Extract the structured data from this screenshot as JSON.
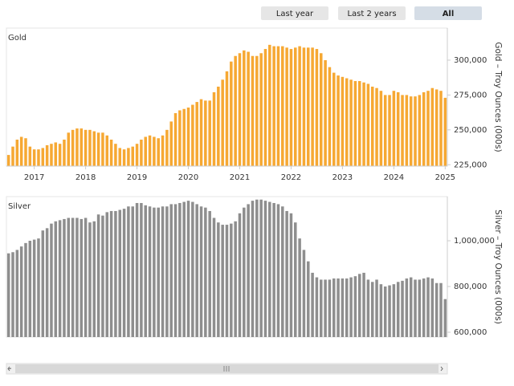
{
  "buttons": [
    "Last year",
    "Last 2 years",
    "All"
  ],
  "chart_data": [
    {
      "type": "bar",
      "title": "Gold",
      "y_label": "Gold – Troy Ounces (000s)",
      "color": "#f6a833",
      "categories": [
        null,
        null,
        null,
        null,
        null,
        null,
        "2017",
        null,
        null,
        null,
        null,
        null,
        null,
        null,
        null,
        null,
        null,
        null,
        "2018",
        null,
        null,
        null,
        null,
        null,
        null,
        null,
        null,
        null,
        null,
        null,
        "2019",
        null,
        null,
        null,
        null,
        null,
        null,
        null,
        null,
        null,
        null,
        null,
        "2020",
        null,
        null,
        null,
        null,
        null,
        null,
        null,
        null,
        null,
        null,
        null,
        "2021",
        null,
        null,
        null,
        null,
        null,
        null,
        null,
        null,
        null,
        null,
        null,
        "2022",
        null,
        null,
        null,
        null,
        null,
        null,
        null,
        null,
        null,
        null,
        null,
        "2023",
        null,
        null,
        null,
        null,
        null,
        null,
        null,
        null,
        null,
        null,
        null,
        "2024",
        null,
        null,
        null,
        null,
        null,
        null,
        null,
        null,
        null,
        null,
        null,
        "2025"
      ],
      "values": [
        232000,
        238000,
        243000,
        245000,
        244000,
        238000,
        236000,
        236000,
        237000,
        239000,
        240000,
        241000,
        240000,
        243000,
        248000,
        250000,
        251000,
        251000,
        250000,
        250000,
        249000,
        248000,
        248000,
        246000,
        243000,
        240000,
        237000,
        236000,
        237000,
        238000,
        240000,
        243000,
        245000,
        246000,
        245000,
        244000,
        246000,
        250000,
        256000,
        262000,
        264000,
        265000,
        266000,
        268000,
        270000,
        272000,
        271000,
        271000,
        277000,
        281000,
        286000,
        292000,
        299000,
        303000,
        305000,
        307000,
        306000,
        303000,
        303000,
        305000,
        308000,
        311000,
        310000,
        310000,
        310000,
        309000,
        308000,
        309000,
        310000,
        309000,
        309000,
        309000,
        308000,
        305000,
        300000,
        295000,
        291000,
        289000,
        288000,
        287000,
        286000,
        285000,
        285000,
        284000,
        283000,
        281000,
        280000,
        278000,
        275000,
        275000,
        278000,
        277000,
        275000,
        275000,
        274000,
        274000,
        275000,
        277000,
        278000,
        280000,
        279000,
        278000,
        273000
      ],
      "ylim": [
        224000,
        323000
      ],
      "yticks": [
        {
          "value": 225000,
          "label": "225,000"
        },
        {
          "value": 250000,
          "label": "250,000"
        },
        {
          "value": 275000,
          "label": "275,000"
        },
        {
          "value": 300000,
          "label": "300,000"
        }
      ]
    },
    {
      "type": "bar",
      "title": "Silver",
      "y_label": "Silver – Troy Ounces (000s)",
      "color": "#8e8e8e",
      "values": [
        945000,
        950000,
        960000,
        975000,
        990000,
        1000000,
        1005000,
        1010000,
        1045000,
        1055000,
        1075000,
        1085000,
        1090000,
        1095000,
        1100000,
        1100000,
        1100000,
        1095000,
        1100000,
        1080000,
        1085000,
        1115000,
        1110000,
        1125000,
        1130000,
        1130000,
        1135000,
        1140000,
        1150000,
        1150000,
        1165000,
        1165000,
        1155000,
        1150000,
        1145000,
        1145000,
        1150000,
        1150000,
        1160000,
        1160000,
        1165000,
        1170000,
        1175000,
        1170000,
        1160000,
        1150000,
        1145000,
        1130000,
        1100000,
        1080000,
        1070000,
        1070000,
        1075000,
        1085000,
        1120000,
        1145000,
        1160000,
        1175000,
        1180000,
        1180000,
        1175000,
        1170000,
        1165000,
        1160000,
        1150000,
        1130000,
        1120000,
        1080000,
        1010000,
        960000,
        910000,
        860000,
        840000,
        830000,
        830000,
        830000,
        835000,
        835000,
        835000,
        835000,
        840000,
        845000,
        855000,
        860000,
        830000,
        820000,
        830000,
        810000,
        800000,
        805000,
        810000,
        820000,
        825000,
        835000,
        840000,
        830000,
        830000,
        835000,
        840000,
        835000,
        815000,
        815000,
        745000
      ],
      "ylim": [
        579000,
        1193000
      ],
      "yticks": [
        {
          "value": 600000,
          "label": "600,000"
        },
        {
          "value": 800000,
          "label": "800,000"
        },
        {
          "value": 1000000,
          "label": "1,000,000"
        }
      ]
    }
  ]
}
